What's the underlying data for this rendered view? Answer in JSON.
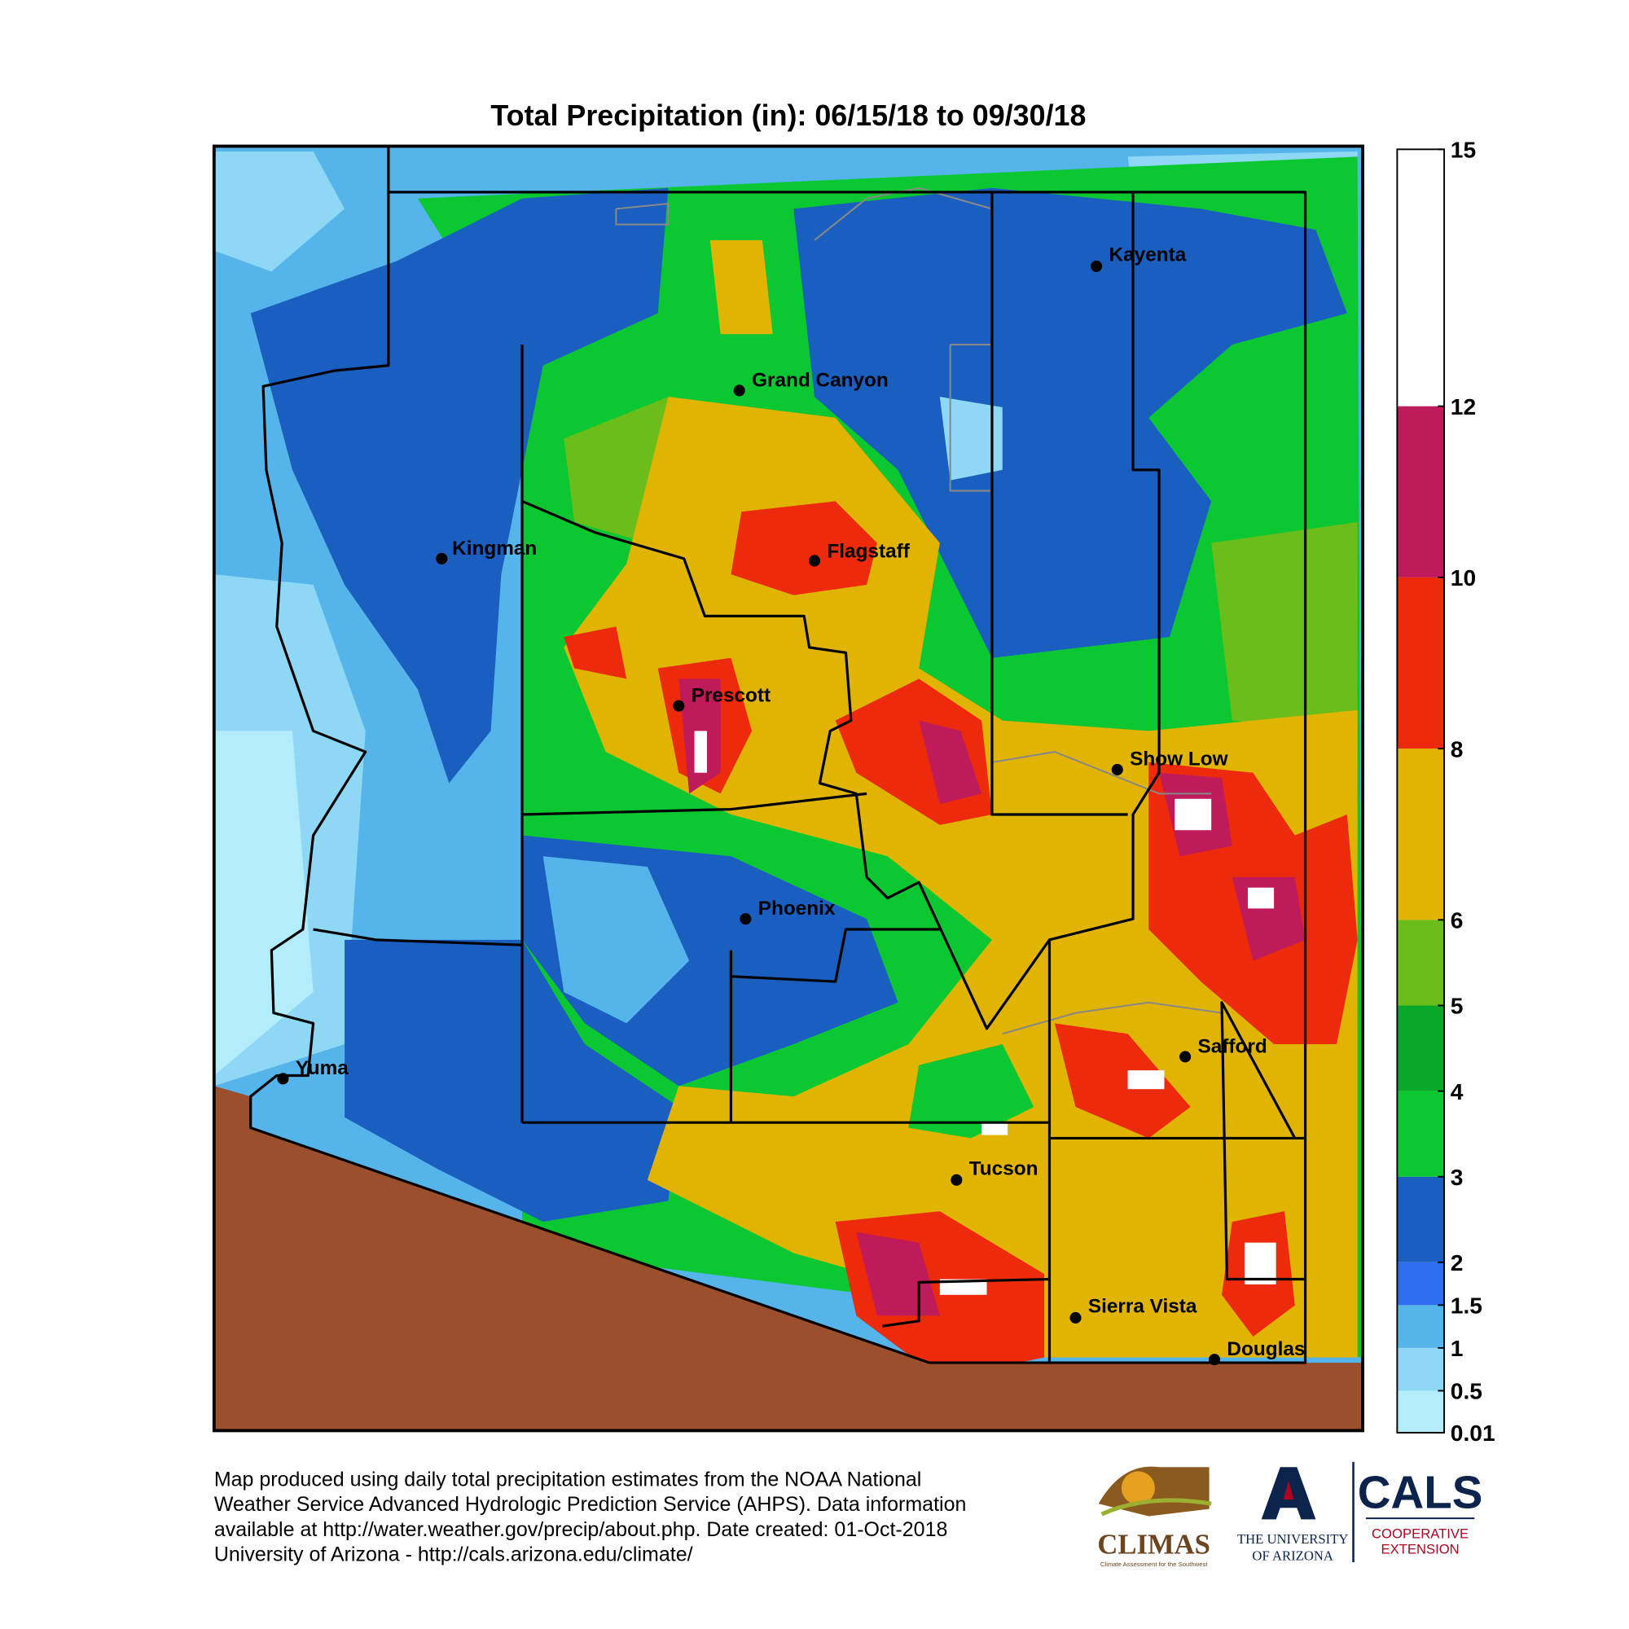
{
  "title": "Total Precipitation (in): 06/15/18 to 09/30/18",
  "cities": [
    "Kayenta",
    "Grand Canyon",
    "Kingman",
    "Flagstaff",
    "Prescott",
    "Show Low",
    "Phoenix",
    "Safford",
    "Yuma",
    "Tucson",
    "Sierra Vista",
    "Douglas"
  ],
  "colorbar": {
    "lim": [
      0.01,
      15
    ],
    "ticks": [
      0.01,
      0.5,
      1,
      1.5,
      2,
      3,
      4,
      5,
      6,
      8,
      10,
      12,
      15
    ],
    "colors": [
      "#b3ecfb",
      "#8ed8f5",
      "#55b4ea",
      "#2f6ef0",
      "#1a5fbf",
      "#0bc832",
      "#0aa82a",
      "#6bbd1a",
      "#e0b400",
      "#ee2a0c",
      "#bf1a5a",
      "#ffffff"
    ]
  },
  "footer": [
    "Map produced using daily total precipitation estimates from the NOAA National",
    "Weather Service Advanced Hydrologic Prediction Service (AHPS). Data information",
    "available at http://water.weather.gov/precip/about.php. Date created: 01-Oct-2018",
    "University of Arizona - http://cals.arizona.edu/climate/"
  ],
  "logos": {
    "climas": "CLIMAS",
    "climas_tagline": "Climate Assessment for the Southwest",
    "university": [
      "THE UNIVERSITY",
      "OF ARIZONA"
    ],
    "cals": "CALS",
    "cals_sub": [
      "COOPERATIVE",
      "EXTENSION"
    ]
  }
}
